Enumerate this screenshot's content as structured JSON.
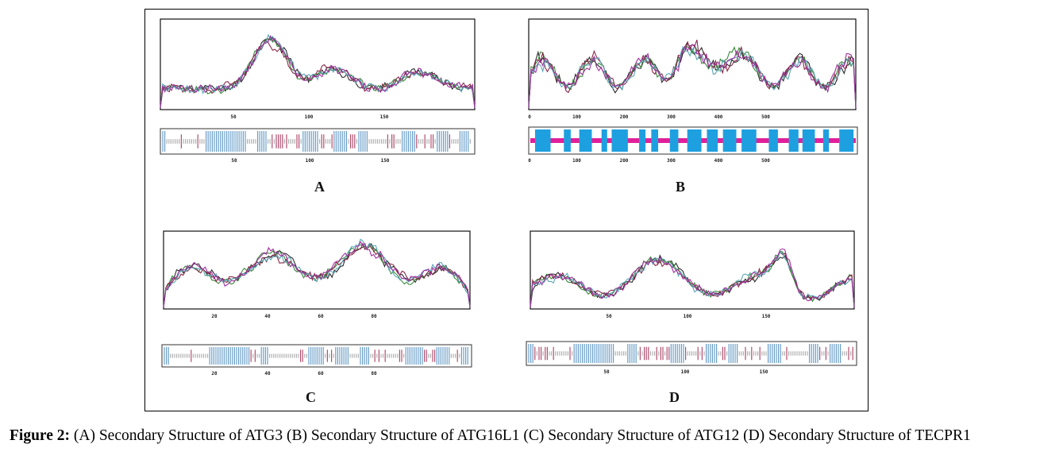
{
  "figure": {
    "caption_label": "Figure 2:",
    "caption_text": " (A) Secondary Structure of ATG3 (B) Secondary Structure of ATG16L1 (C) Secondary Structure of ATG12 (D) Secondary Structure of TECPR1"
  },
  "line_colors": [
    "#2b2b2b",
    "#3b8a3b",
    "#8b2a4a",
    "#5aa8b8",
    "#a030a0"
  ],
  "strip_colors": {
    "helix": "#6a9ec8",
    "coil": "#b0b0b0",
    "strand": "#b05070",
    "b_helix": "#1ea0e0",
    "b_coil": "#e0209a"
  },
  "panels": [
    {
      "id": "A",
      "letter": "A",
      "protein": "ATG3",
      "plot_ticks": [
        "50",
        "100",
        "150"
      ],
      "strip_ticks": [
        "50",
        "100",
        "150"
      ]
    },
    {
      "id": "B",
      "letter": "B",
      "protein": "ATG16L1",
      "plot_ticks": [
        "0",
        "100",
        "200",
        "300",
        "400",
        "500"
      ],
      "strip_ticks": [
        "0",
        "100",
        "200",
        "300",
        "400",
        "500"
      ]
    },
    {
      "id": "C",
      "letter": "C",
      "protein": "ATG12",
      "plot_ticks": [
        "20",
        "40",
        "60",
        "80"
      ],
      "strip_ticks": [
        "20",
        "40",
        "60",
        "80"
      ]
    },
    {
      "id": "D",
      "letter": "D",
      "protein": "TECPR1",
      "plot_ticks": [
        "50",
        "100",
        "150"
      ],
      "strip_ticks": [
        "50",
        "100",
        "150"
      ]
    }
  ]
}
